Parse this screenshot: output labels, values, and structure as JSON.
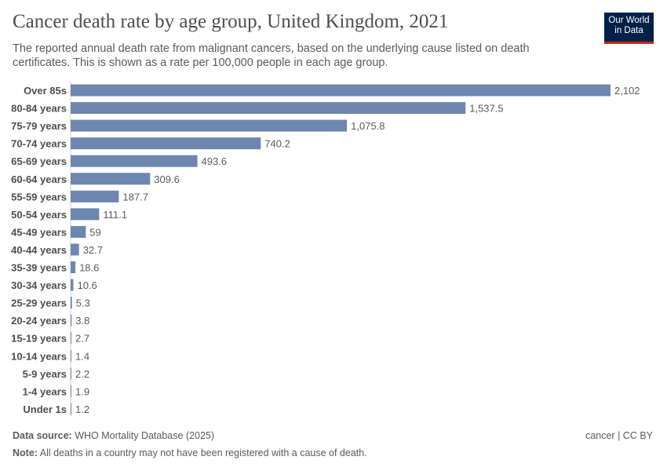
{
  "title": "Cancer death rate by age group, United Kingdom, 2021",
  "subtitle": "The reported annual death rate from malignant cancers, based on the underlying cause listed on death certificates. This is shown as a rate per 100,000 people in each age group.",
  "logo": {
    "line1": "Our World",
    "line2": "in Data"
  },
  "footer": {
    "source_label": "Data source:",
    "source": "WHO Mortality Database (2025)",
    "note_label": "Note:",
    "note": "All deaths in a country may not have been registered with a cause of death.",
    "license": "cancer | CC BY"
  },
  "colors": {
    "bar": "#6d87b0"
  },
  "chart_data": {
    "type": "bar",
    "orientation": "horizontal",
    "categories": [
      "Over 85s",
      "80-84 years",
      "75-79 years",
      "70-74 years",
      "65-69 years",
      "60-64 years",
      "55-59 years",
      "50-54 years",
      "45-49 years",
      "40-44 years",
      "35-39 years",
      "30-34 years",
      "25-29 years",
      "20-24 years",
      "15-19 years",
      "10-14 years",
      "5-9 years",
      "1-4 years",
      "Under 1s"
    ],
    "values": [
      2102,
      1537.5,
      1075.8,
      740.2,
      493.6,
      309.6,
      187.7,
      111.1,
      59,
      32.7,
      18.6,
      10.6,
      5.3,
      3.8,
      2.7,
      1.4,
      2.2,
      1.9,
      1.2
    ],
    "labels": [
      "2,102",
      "1,537.5",
      "1,075.8",
      "740.2",
      "493.6",
      "309.6",
      "187.7",
      "111.1",
      "59",
      "32.7",
      "18.6",
      "10.6",
      "5.3",
      "3.8",
      "2.7",
      "1.4",
      "2.2",
      "1.9",
      "1.2"
    ],
    "grid": false
  }
}
